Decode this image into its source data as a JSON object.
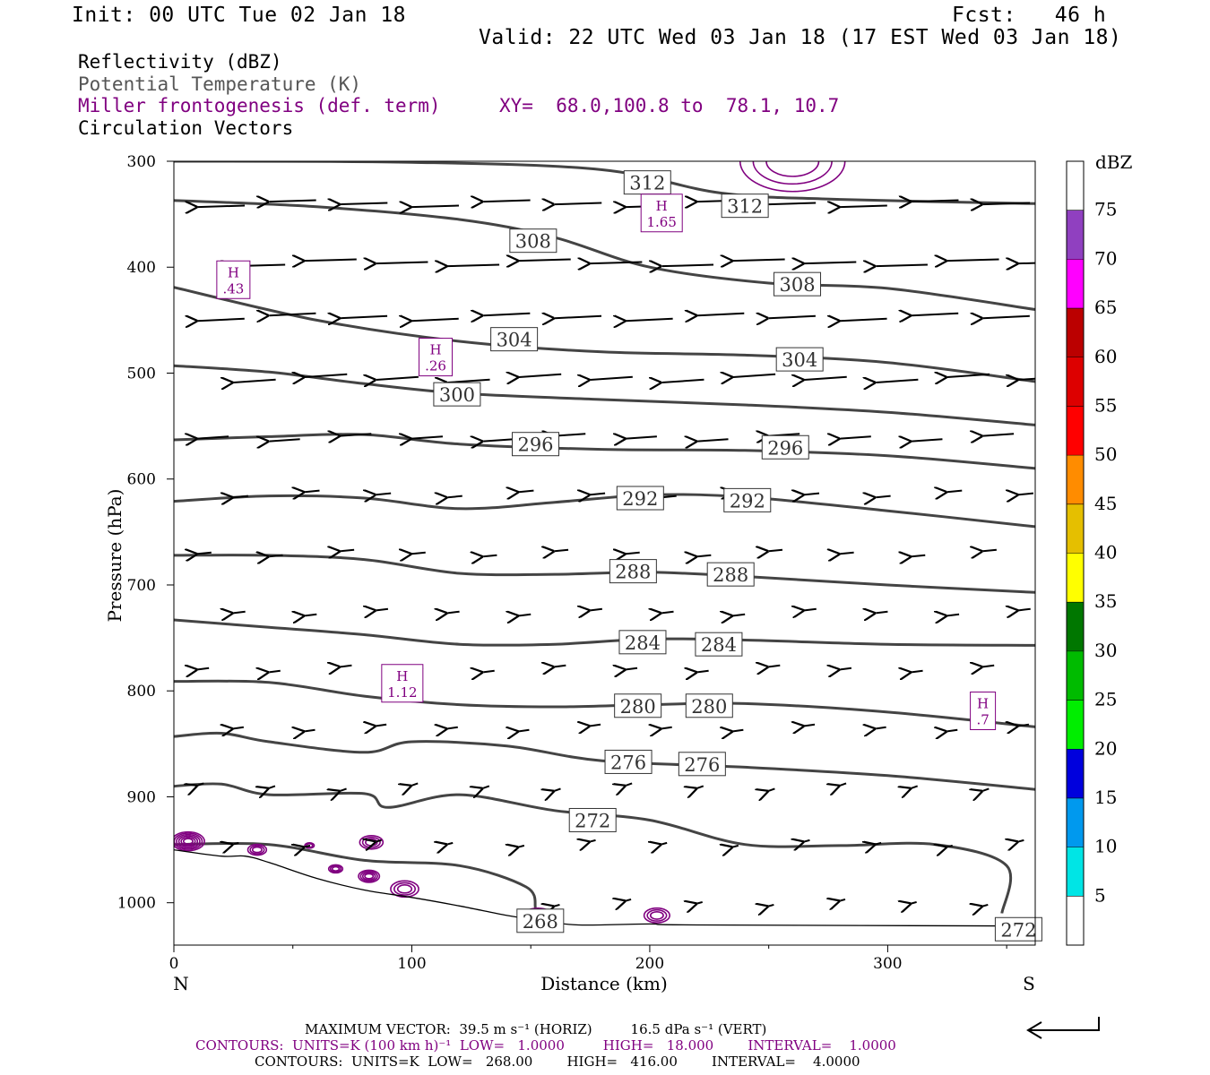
{
  "header": {
    "init": "Init: 00 UTC Tue 02 Jan 18",
    "fcst": "Fcst:   46 h",
    "valid": "Valid: 22 UTC Wed 03 Jan 18 (17 EST Wed 03 Jan 18)"
  },
  "legend": {
    "line1": "Reflectivity (dBZ)",
    "line2": "Potential Temperature (K)",
    "line3": "Miller frontogenesis (def. term)",
    "xy": "XY=  68.0,100.8 to  78.1, 10.7",
    "line4": "Circulation Vectors"
  },
  "footer": {
    "max_vector": "MAXIMUM VECTOR:  39.5 m s⁻¹ (HORIZ)         16.5 dPa s⁻¹ (VERT)",
    "contours_fronto": "CONTOURS:  UNITS=K (100 km h)⁻¹  LOW=   1.0000         HIGH=   18.000        INTERVAL=    1.0000",
    "contours_theta": "CONTOURS:  UNITS=K  LOW=   268.00        HIGH=   416.00        INTERVAL=    4.0000"
  },
  "colorbar": {
    "title": "dBZ",
    "levels": [
      "5",
      "10",
      "15",
      "20",
      "25",
      "30",
      "35",
      "40",
      "45",
      "50",
      "55",
      "60",
      "65",
      "70",
      "75"
    ],
    "colors": [
      "#ffffff",
      "#00e5e5",
      "#0099ee",
      "#0000dd",
      "#00ee00",
      "#00bb00",
      "#007700",
      "#ffff00",
      "#e5bf00",
      "#ff8c00",
      "#ff0000",
      "#dd0000",
      "#bb0000",
      "#ff00ff",
      "#9040c0",
      "#ffffff"
    ]
  },
  "colors": {
    "theta": "#444444",
    "fronto": "#800080",
    "vectors": "#000000",
    "terrain": "#000000"
  },
  "chart_data": {
    "type": "cross-section",
    "xlabel": "Distance (km)",
    "ylabel": "Pressure (hPa)",
    "xlim": [
      0,
      362
    ],
    "ylim": [
      1040,
      300
    ],
    "x_ticks": [
      0,
      100,
      200,
      300
    ],
    "y_ticks": [
      300,
      400,
      500,
      600,
      700,
      800,
      900,
      1000
    ],
    "end_labels": {
      "left": "N",
      "right": "S"
    },
    "theta_contours": [
      {
        "label": "312",
        "points": [
          [
            0,
            300
          ],
          [
            100,
            301
          ],
          [
            180,
            308
          ],
          [
            230,
            330
          ],
          [
            280,
            336
          ],
          [
            362,
            340
          ]
        ],
        "labels_at": [
          [
            199,
            320
          ],
          [
            240,
            342
          ]
        ]
      },
      {
        "label": "308",
        "points": [
          [
            0,
            337
          ],
          [
            60,
            343
          ],
          [
            120,
            355
          ],
          [
            160,
            372
          ],
          [
            200,
            400
          ],
          [
            250,
            415
          ],
          [
            300,
            420
          ],
          [
            362,
            440
          ]
        ],
        "labels_at": [
          [
            151,
            375
          ],
          [
            262,
            416
          ]
        ]
      },
      {
        "label": "304",
        "points": [
          [
            0,
            419
          ],
          [
            60,
            450
          ],
          [
            120,
            470
          ],
          [
            180,
            480
          ],
          [
            240,
            483
          ],
          [
            300,
            490
          ],
          [
            362,
            508
          ]
        ],
        "labels_at": [
          [
            143,
            468
          ],
          [
            263,
            487
          ]
        ]
      },
      {
        "label": "300",
        "points": [
          [
            0,
            493
          ],
          [
            40,
            499
          ],
          [
            80,
            510
          ],
          [
            120,
            519
          ],
          [
            180,
            525
          ],
          [
            240,
            530
          ],
          [
            300,
            537
          ],
          [
            362,
            549
          ]
        ],
        "labels_at": [
          [
            119,
            520
          ]
        ]
      },
      {
        "label": "296",
        "points": [
          [
            0,
            563
          ],
          [
            40,
            560
          ],
          [
            80,
            558
          ],
          [
            120,
            567
          ],
          [
            180,
            572
          ],
          [
            240,
            573
          ],
          [
            300,
            578
          ],
          [
            362,
            590
          ]
        ],
        "labels_at": [
          [
            152,
            567
          ],
          [
            257,
            570
          ]
        ]
      },
      {
        "label": "292",
        "points": [
          [
            0,
            621
          ],
          [
            40,
            616
          ],
          [
            80,
            618
          ],
          [
            120,
            628
          ],
          [
            160,
            622
          ],
          [
            200,
            615
          ],
          [
            240,
            617
          ],
          [
            300,
            630
          ],
          [
            362,
            645
          ]
        ],
        "labels_at": [
          [
            196,
            618
          ],
          [
            241,
            620
          ]
        ]
      },
      {
        "label": "288",
        "points": [
          [
            0,
            672
          ],
          [
            40,
            672
          ],
          [
            80,
            676
          ],
          [
            120,
            689
          ],
          [
            160,
            690
          ],
          [
            200,
            688
          ],
          [
            240,
            692
          ],
          [
            300,
            700
          ],
          [
            362,
            707
          ]
        ],
        "labels_at": [
          [
            193,
            687
          ],
          [
            234,
            690
          ]
        ]
      },
      {
        "label": "284",
        "points": [
          [
            0,
            733
          ],
          [
            40,
            740
          ],
          [
            80,
            747
          ],
          [
            120,
            756
          ],
          [
            160,
            756
          ],
          [
            200,
            751
          ],
          [
            240,
            752
          ],
          [
            300,
            756
          ],
          [
            362,
            757
          ]
        ],
        "labels_at": [
          [
            197,
            754
          ],
          [
            229,
            756
          ]
        ]
      },
      {
        "label": "280",
        "points": [
          [
            0,
            791
          ],
          [
            40,
            792
          ],
          [
            80,
            805
          ],
          [
            120,
            813
          ],
          [
            160,
            815
          ],
          [
            200,
            813
          ],
          [
            240,
            812
          ],
          [
            300,
            820
          ],
          [
            362,
            834
          ]
        ],
        "labels_at": [
          [
            195,
            814
          ],
          [
            225,
            814
          ]
        ]
      },
      {
        "label": "276",
        "points": [
          [
            0,
            843
          ],
          [
            20,
            840
          ],
          [
            40,
            848
          ],
          [
            80,
            858
          ],
          [
            100,
            848
          ],
          [
            140,
            852
          ],
          [
            180,
            866
          ],
          [
            240,
            872
          ],
          [
            300,
            880
          ],
          [
            362,
            893
          ]
        ],
        "labels_at": [
          [
            191,
            867
          ],
          [
            222,
            869
          ]
        ]
      },
      {
        "label": "272",
        "points": [
          [
            0,
            890
          ],
          [
            20,
            888
          ],
          [
            40,
            898
          ],
          [
            80,
            897
          ],
          [
            90,
            910
          ],
          [
            120,
            898
          ],
          [
            160,
            913
          ],
          [
            200,
            922
          ],
          [
            240,
            945
          ],
          [
            280,
            946
          ],
          [
            320,
            945
          ],
          [
            350,
            965
          ],
          [
            348,
            1010
          ]
        ],
        "labels_at": [
          [
            176,
            922
          ],
          [
            355,
            1025
          ]
        ]
      },
      {
        "label": "268",
        "points": [
          [
            0,
            945
          ],
          [
            40,
            945
          ],
          [
            80,
            960
          ],
          [
            120,
            965
          ],
          [
            148,
            985
          ],
          [
            152,
            1005
          ]
        ],
        "labels_at": [
          [
            154,
            1017
          ]
        ]
      }
    ],
    "fronto_maxima": [
      {
        "label": "1.65",
        "x": 205,
        "p": 348
      },
      {
        "label": ".43",
        "x": 25,
        "p": 411
      },
      {
        "label": ".26",
        "x": 110,
        "p": 484
      },
      {
        "label": "1.12",
        "x": 96,
        "p": 792
      },
      {
        "label": ".7",
        "x": 340,
        "p": 818
      }
    ],
    "terrain_profile": [
      [
        0,
        950
      ],
      [
        20,
        956
      ],
      [
        30,
        956
      ],
      [
        40,
        962
      ],
      [
        60,
        977
      ],
      [
        80,
        988
      ],
      [
        100,
        995
      ],
      [
        120,
        1003
      ],
      [
        140,
        1012
      ],
      [
        155,
        1017
      ],
      [
        170,
        1021
      ],
      [
        200,
        1020
      ],
      [
        220,
        1021
      ],
      [
        360,
        1022
      ]
    ],
    "max_vector": {
      "horiz": 39.5,
      "horiz_units": "m s-1",
      "vert": 16.5,
      "vert_units": "dPa s-1"
    },
    "fronto_contours": {
      "units": "K (100 km h)-1",
      "low": 1.0,
      "high": 18.0,
      "interval": 1.0
    },
    "theta_contour_info": {
      "units": "K",
      "low": 268.0,
      "high": 416.0,
      "interval": 4.0
    }
  }
}
